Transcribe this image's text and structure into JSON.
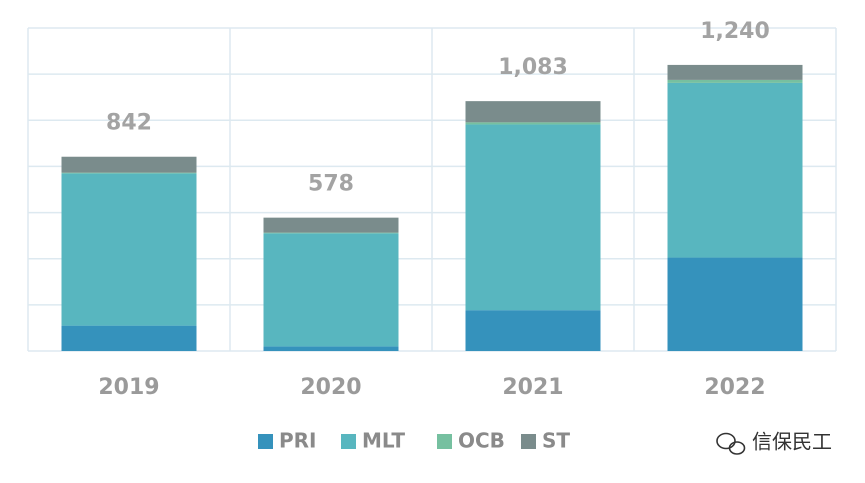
{
  "chart_data": {
    "type": "stacked_bar",
    "categories": [
      "2019",
      "2020",
      "2021",
      "2022"
    ],
    "series": [
      {
        "name": "PRI",
        "color": "#3592bc",
        "values": [
          110,
          20,
          177,
          405
        ]
      },
      {
        "name": "MLT",
        "color": "#58b6bf",
        "values": [
          660,
          490,
          805,
          757
        ]
      },
      {
        "name": "OCB",
        "color": "#76c0a0",
        "values": [
          3,
          3,
          9,
          13
        ]
      },
      {
        "name": "ST",
        "color": "#7a8c8c",
        "values": [
          69,
          65,
          92,
          65
        ]
      }
    ],
    "totals": [
      842,
      578,
      1083,
      1240
    ],
    "total_labels": [
      "842",
      "578",
      "1,083",
      "1,240"
    ],
    "ylim": [
      0,
      1400
    ],
    "yticks": [
      0,
      200,
      400,
      600,
      800,
      1000,
      1200,
      1400
    ],
    "grid": true,
    "legend": "bottom",
    "watermark": "信保民工"
  }
}
